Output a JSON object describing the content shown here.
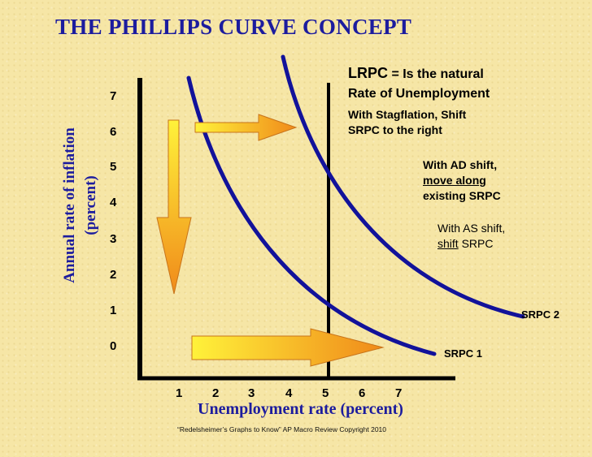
{
  "title": "THE PHILLIPS CURVE CONCEPT",
  "y_axis_label_line1": "Annual rate of inflation",
  "y_axis_label_line2": "(percent)",
  "x_axis_label": "Unemployment rate (percent)",
  "y_ticks": [
    "7",
    "6",
    "5",
    "4",
    "3",
    "2",
    "1",
    "0"
  ],
  "x_ticks": [
    "1",
    "2",
    "3",
    "4",
    "5",
    "6",
    "7"
  ],
  "annotations": {
    "lrpc_term": "LRPC",
    "lrpc_rest": " = Is the natural",
    "lrpc_line2": "Rate of Unemployment",
    "stagflation_line1": "With Stagflation, Shift",
    "stagflation_line2": "SRPC to the right",
    "ad_line1": "With AD shift,",
    "ad_line2": "move along",
    "ad_line3": "existing SRPC",
    "as_line1": "With AS shift,",
    "as_line2_underlined": "shift",
    "as_line2_rest": " SRPC",
    "srpc1": "SRPC 1",
    "srpc2": "SRPC 2"
  },
  "footer": "“Redelsheimer’s Graphs to Know”  AP Macro Review Copyright 2010",
  "colors": {
    "title": "#1c1c9e",
    "curve": "#12129a",
    "axis": "#000000",
    "arrow_light": "#fff23a",
    "arrow_dark": "#f08a1a",
    "background": "#f6e6a6"
  },
  "icons": [
    "arrow-down-icon",
    "arrow-right-icon"
  ]
}
